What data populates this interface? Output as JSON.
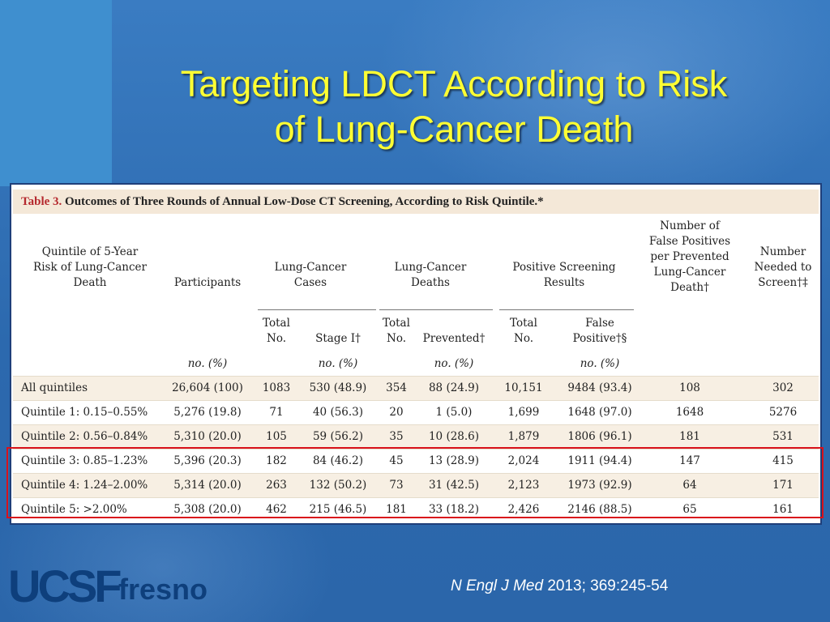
{
  "slide": {
    "title_line1": "Targeting LDCT According to Risk",
    "title_line2": "of Lung-Cancer Death"
  },
  "table": {
    "caption_label": "Table 3.",
    "caption_text": "Outcomes of Three Rounds of Annual Low-Dose CT Screening, According to Risk Quintile.*",
    "headers": {
      "quintile": [
        "Quintile of 5-Year",
        "Risk of Lung-Cancer",
        "Death"
      ],
      "participants": "Participants",
      "cases_group": [
        "Lung-Cancer",
        "Cases"
      ],
      "deaths_group": [
        "Lung-Cancer",
        "Deaths"
      ],
      "positive_group": [
        "Positive Screening",
        "Results"
      ],
      "false_pos_per_death": [
        "Number of",
        "False Positives",
        "per Prevented",
        "Lung-Cancer",
        "Death†"
      ],
      "nns": [
        "Number",
        "Needed to",
        "Screen†‡"
      ],
      "sub_total": [
        "Total",
        "No."
      ],
      "sub_stage": "Stage I†",
      "sub_prevented": "Prevented†",
      "sub_false_positive": [
        "False",
        "Positive†§"
      ],
      "unit_pct": "no. (%)"
    },
    "rows": [
      {
        "label": "All quintiles",
        "participants": "26,604 (100)",
        "cases_total": "1083",
        "stage1": "530 (48.9)",
        "deaths_total": "354",
        "prevented": "88 (24.9)",
        "pos_total": "10,151",
        "false_pos": "9484 (93.4)",
        "fp_per_death": "108",
        "nns": "302"
      },
      {
        "label": "Quintile 1: 0.15–0.55%",
        "participants": "5,276 (19.8)",
        "cases_total": "71",
        "stage1": "40 (56.3)",
        "deaths_total": "20",
        "prevented": "1 (5.0)",
        "pos_total": "1,699",
        "false_pos": "1648 (97.0)",
        "fp_per_death": "1648",
        "nns": "5276"
      },
      {
        "label": "Quintile 2: 0.56–0.84%",
        "participants": "5,310 (20.0)",
        "cases_total": "105",
        "stage1": "59 (56.2)",
        "deaths_total": "35",
        "prevented": "10 (28.6)",
        "pos_total": "1,879",
        "false_pos": "1806 (96.1)",
        "fp_per_death": "181",
        "nns": "531"
      },
      {
        "label": "Quintile 3: 0.85–1.23%",
        "participants": "5,396 (20.3)",
        "cases_total": "182",
        "stage1": "84 (46.2)",
        "deaths_total": "45",
        "prevented": "13 (28.9)",
        "pos_total": "2,024",
        "false_pos": "1911 (94.4)",
        "fp_per_death": "147",
        "nns": "415"
      },
      {
        "label": "Quintile 4: 1.24–2.00%",
        "participants": "5,314 (20.0)",
        "cases_total": "263",
        "stage1": "132 (50.2)",
        "deaths_total": "73",
        "prevented": "31 (42.5)",
        "pos_total": "2,123",
        "false_pos": "1973 (92.9)",
        "fp_per_death": "64",
        "nns": "171"
      },
      {
        "label": "Quintile 5: >2.00%",
        "participants": "5,308 (20.0)",
        "cases_total": "462",
        "stage1": "215 (46.5)",
        "deaths_total": "181",
        "prevented": "33 (18.2)",
        "pos_total": "2,426",
        "false_pos": "2146 (88.5)",
        "fp_per_death": "65",
        "nns": "161"
      }
    ]
  },
  "logo": {
    "ucsf": "UCSF",
    "fresno": "fresno"
  },
  "citation": {
    "journal": "N Engl J Med",
    "ref": " 2013; 369:245-54"
  },
  "colors": {
    "title": "#ffff33",
    "highlight": "#d9121b",
    "caption_label": "#b5292e"
  }
}
